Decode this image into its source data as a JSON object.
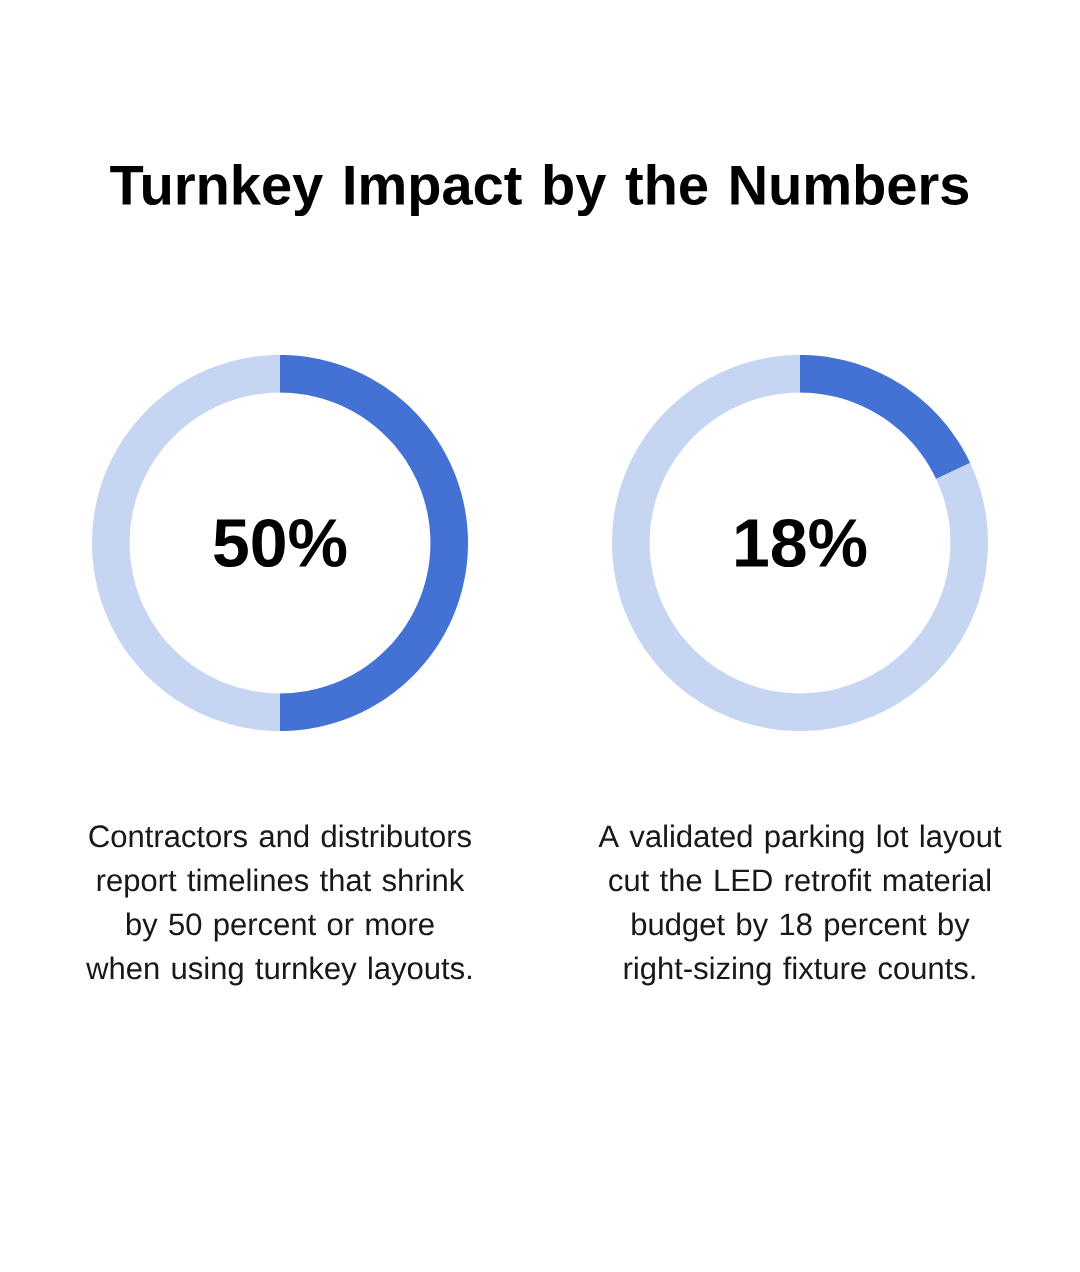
{
  "chart_data": [
    {
      "type": "donut",
      "title": "Turnkey Impact by the Numbers",
      "categories": [
        null,
        null
      ],
      "values": [
        50,
        50
      ],
      "colors": [
        "#4472d4",
        "#c6d5f1"
      ],
      "annotations": [
        "50%",
        "Contractors and distributors report timelines that shrink by 50 percent or more when using turnkey layouts."
      ]
    },
    {
      "type": "donut",
      "categories": [
        null,
        null
      ],
      "values": [
        18,
        82
      ],
      "colors": [
        "#4472d4",
        "#c6d5f1"
      ],
      "annotations": [
        "18%",
        "A validated parking lot layout cut the LED retrofit material budget by 18 percent by right-sizing fixture counts."
      ]
    }
  ]
}
